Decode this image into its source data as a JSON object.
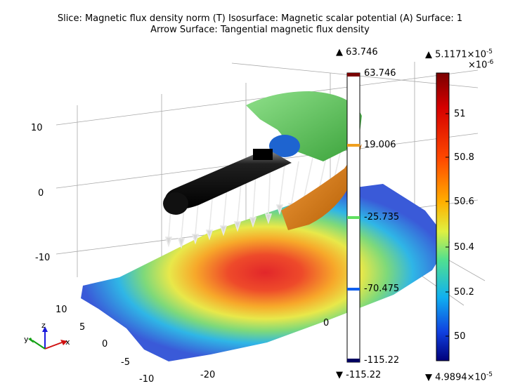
{
  "plot": {
    "title_line1": "Slice: Magnetic flux density norm (T)  Isosurface: Magnetic scalar potential (A)  Surface: 1",
    "title_line2": "Arrow Surface: Tangential magnetic flux density"
  },
  "axes": {
    "z_ticks": [
      "10",
      "0",
      "-10"
    ],
    "y_ticks": [
      "10",
      "5",
      "0",
      "-5",
      "-10"
    ],
    "x_ticks": [
      "-20",
      "0"
    ],
    "triad": {
      "x": "x",
      "y": "y",
      "z": "z"
    }
  },
  "isosurface_legend": {
    "max_label": "▲ 63.746",
    "min_label": "▼ -115.22",
    "levels": [
      "63.746",
      "19.006",
      "-25.735",
      "-70.475",
      "-115.22"
    ]
  },
  "slice_colorbar": {
    "max_label": "▲ 5.1171×10",
    "max_exp": "-5",
    "multiplier": "×10",
    "multiplier_exp": "-6",
    "ticks": [
      "51",
      "50.8",
      "50.6",
      "50.4",
      "50.2",
      "50"
    ],
    "min_label": "▼ 4.9894×10",
    "min_exp": "-5"
  },
  "colors": {
    "coil_green": "#5cc45c",
    "coil_orange": "#e07a10",
    "core_black": "#111111",
    "magnet_blue": "#1e64d0"
  }
}
